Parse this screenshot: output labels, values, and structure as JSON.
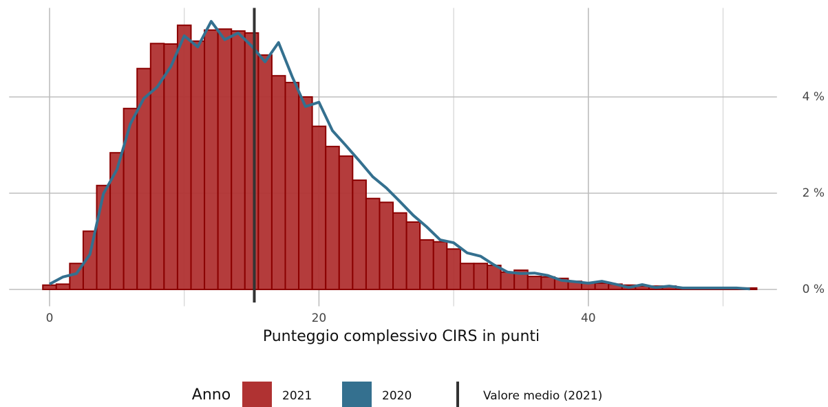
{
  "chart_data": {
    "type": "histogram",
    "x_label": "Punteggio complessivo CIRS in punti",
    "bins": [
      -0.5,
      0.5,
      1.5,
      2.5,
      3.5,
      4.5,
      5.5,
      6.5,
      7.5,
      8.5,
      9.5,
      10.5,
      11.5,
      12.5,
      13.5,
      14.5,
      15.5,
      16.5,
      17.5,
      18.5,
      19.5,
      20.5,
      21.5,
      22.5,
      23.5,
      24.5,
      25.5,
      26.5,
      27.5,
      28.5,
      29.5,
      30.5,
      31.5,
      32.5,
      33.5,
      34.5,
      35.5,
      36.5,
      37.5,
      38.5,
      39.5,
      40.5,
      41.5,
      42.5,
      43.5,
      44.5,
      45.5,
      46.5,
      47.5,
      48.5,
      49.5,
      50.5,
      51.5,
      52.5
    ],
    "series": [
      {
        "name": "2021",
        "color": "#b03232",
        "edge_color": "#8b0000",
        "values": [
          0.09,
          0.11,
          0.54,
          1.21,
          2.16,
          2.84,
          3.76,
          4.59,
          5.11,
          5.1,
          5.49,
          5.16,
          5.39,
          5.41,
          5.37,
          5.33,
          4.87,
          4.44,
          4.3,
          4.0,
          3.39,
          2.97,
          2.77,
          2.27,
          1.89,
          1.81,
          1.59,
          1.4,
          1.03,
          0.99,
          0.84,
          0.54,
          0.54,
          0.5,
          0.36,
          0.4,
          0.27,
          0.26,
          0.23,
          0.17,
          0.14,
          0.13,
          0.11,
          0.09,
          0.07,
          0.07,
          0.07,
          0.04,
          0.03,
          0.03,
          0.03,
          0.03,
          0.03
        ]
      },
      {
        "name": "2020",
        "color": "#34708f",
        "type": "line",
        "x": [
          0,
          1,
          2,
          3,
          4,
          5,
          6,
          7,
          8,
          9,
          10,
          11,
          12,
          13,
          14,
          15,
          16,
          17,
          18,
          19,
          20,
          21,
          22,
          23,
          24,
          25,
          26,
          27,
          28,
          29,
          30,
          31,
          32,
          33,
          34,
          35,
          36,
          37,
          38,
          39,
          40,
          41,
          42,
          43,
          44,
          45,
          46,
          47,
          48,
          49,
          50,
          51,
          52
        ],
        "values": [
          0.11,
          0.26,
          0.33,
          0.73,
          1.99,
          2.49,
          3.44,
          3.97,
          4.21,
          4.63,
          5.27,
          5.04,
          5.57,
          5.19,
          5.33,
          5.06,
          4.73,
          5.13,
          4.43,
          3.8,
          3.89,
          3.3,
          2.99,
          2.67,
          2.34,
          2.11,
          1.83,
          1.54,
          1.3,
          1.03,
          0.97,
          0.76,
          0.69,
          0.51,
          0.36,
          0.33,
          0.34,
          0.29,
          0.19,
          0.16,
          0.13,
          0.17,
          0.11,
          0.04,
          0.1,
          0.04,
          0.07,
          0.03,
          0.03,
          0.03,
          0.03,
          0.03,
          0.01
        ]
      }
    ],
    "mean_line": {
      "label": "Valore medio (2021)",
      "value": 15.2,
      "color": "#333333"
    },
    "legend_title": "Anno",
    "legend": "bottom",
    "xlim": [
      -3,
      54
    ],
    "ylim": [
      -0.35,
      5.85
    ],
    "xticks": [
      0,
      20,
      40
    ],
    "xgrid_minor": [
      10,
      30,
      50
    ],
    "yticks": [
      {
        "value": 0,
        "label": "0 %"
      },
      {
        "value": 2,
        "label": "2 %"
      },
      {
        "value": 4,
        "label": "4 %"
      }
    ],
    "y_axis_side": "right",
    "grid": true
  }
}
